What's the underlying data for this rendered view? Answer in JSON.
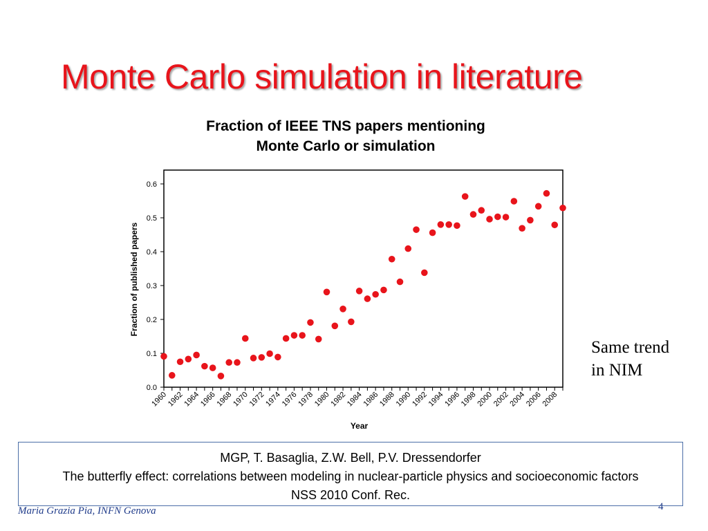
{
  "slide": {
    "title": "Monte Carlo simulation in literature",
    "side_note_lines": [
      "Same trend",
      "in NIM"
    ],
    "footer_author": "Maria Grazia Pia, INFN Genova",
    "page_number": "4",
    "reference": {
      "line1": "MGP, T. Basaglia, Z.W. Bell, P.V. Dressendorfer",
      "line2": "The butterfly effect: correlations between  modeling in nuclear-particle physics  and socioeconomic factors",
      "line3": "NSS 2010 Conf. Rec."
    }
  },
  "chart_data": {
    "type": "scatter",
    "title_lines": [
      "Fraction of IEEE TNS papers mentioning",
      "Monte Carlo or simulation"
    ],
    "xlabel": "Year",
    "ylabel": "Fraction of published papers",
    "xlim": [
      1960,
      2009
    ],
    "ylim": [
      0.0,
      0.6
    ],
    "yticks": [
      "0.0",
      "0.1",
      "0.2",
      "0.3",
      "0.4",
      "0.5",
      "0.6"
    ],
    "xticks": [
      "1960",
      "1962",
      "1964",
      "1966",
      "1968",
      "1970",
      "1972",
      "1974",
      "1976",
      "1978",
      "1980",
      "1982",
      "1984",
      "1986",
      "1988",
      "1990",
      "1992",
      "1994",
      "1996",
      "1998",
      "2000",
      "2002",
      "2004",
      "2006",
      "2008"
    ],
    "marker_color": "#e8141b",
    "grid": false,
    "x": [
      1960,
      1961,
      1962,
      1963,
      1964,
      1965,
      1966,
      1967,
      1968,
      1969,
      1970,
      1971,
      1972,
      1973,
      1974,
      1975,
      1976,
      1977,
      1978,
      1979,
      1980,
      1981,
      1982,
      1983,
      1984,
      1985,
      1986,
      1987,
      1988,
      1989,
      1990,
      1991,
      1992,
      1993,
      1994,
      1995,
      1996,
      1997,
      1998,
      1999,
      2000,
      2001,
      2002,
      2003,
      2004,
      2005,
      2006,
      2007,
      2008,
      2009
    ],
    "y": [
      0.091,
      0.035,
      0.075,
      0.083,
      0.095,
      0.062,
      0.057,
      0.033,
      0.073,
      0.073,
      0.144,
      0.086,
      0.088,
      0.099,
      0.089,
      0.144,
      0.153,
      0.153,
      0.191,
      0.142,
      0.281,
      0.181,
      0.231,
      0.193,
      0.284,
      0.261,
      0.274,
      0.287,
      0.378,
      0.311,
      0.409,
      0.465,
      0.338,
      0.456,
      0.48,
      0.48,
      0.477,
      0.563,
      0.51,
      0.522,
      0.496,
      0.503,
      0.502,
      0.549,
      0.469,
      0.493,
      0.534,
      0.572,
      0.479,
      0.529
    ]
  }
}
